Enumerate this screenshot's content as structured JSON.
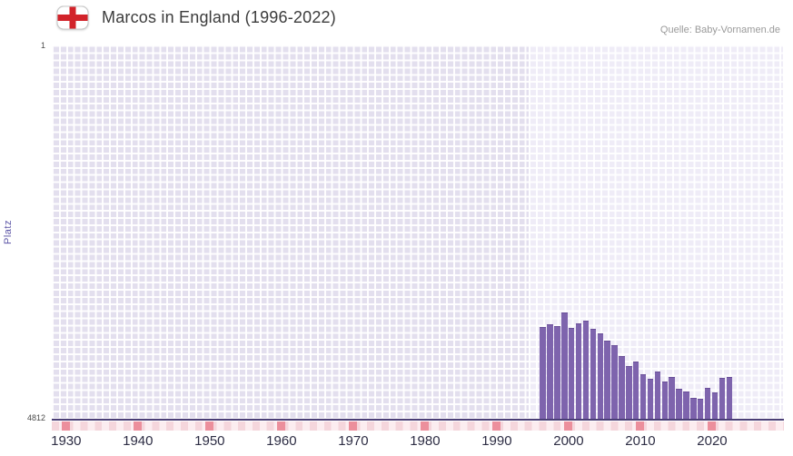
{
  "header": {
    "title": "Marcos in England (1996-2022)",
    "source": "Quelle: Baby-Vornamen.de",
    "flag_icon": "england-flag-icon"
  },
  "chart_data": {
    "type": "bar",
    "title": "Marcos in England (1996-2022)",
    "ylabel": "Platz",
    "y_axis": {
      "top_label": "1",
      "bottom_label": "4812",
      "min": 1,
      "max": 4812,
      "inverted": true,
      "note": "rank 1 at top; bars rise from bottom, taller bar = better rank"
    },
    "x_axis": {
      "min": 1928,
      "max": 2030,
      "ticks": [
        1930,
        1940,
        1950,
        1960,
        1970,
        1980,
        1990,
        2000,
        2010,
        2020
      ]
    },
    "highlight_region": {
      "from": 1994.5,
      "to": 2030
    },
    "years": [
      1996,
      1997,
      1998,
      1999,
      2000,
      2001,
      2002,
      2003,
      2004,
      2005,
      2006,
      2007,
      2008,
      2009,
      2010,
      2011,
      2012,
      2013,
      2014,
      2015,
      2016,
      2017,
      2018,
      2019,
      2020,
      2021,
      2022
    ],
    "values": [
      3630,
      3600,
      3615,
      3440,
      3645,
      3580,
      3555,
      3660,
      3720,
      3810,
      3870,
      4010,
      4130,
      4080,
      4240,
      4300,
      4210,
      4330,
      4280,
      4430,
      4460,
      4540,
      4560,
      4420,
      4470,
      4290,
      4270
    ],
    "legend": null,
    "grid": true,
    "colors": {
      "bar": "#7e64ad",
      "bar_edge": "#6a4f99",
      "plot_bg": "#e3dfee",
      "highlight_bg": "#efecf7",
      "grid_line": "#ffffff",
      "axis_line": "#4b3f76",
      "decade_marker": "#ec8f9c",
      "flag_cross": "#d2232a"
    }
  }
}
